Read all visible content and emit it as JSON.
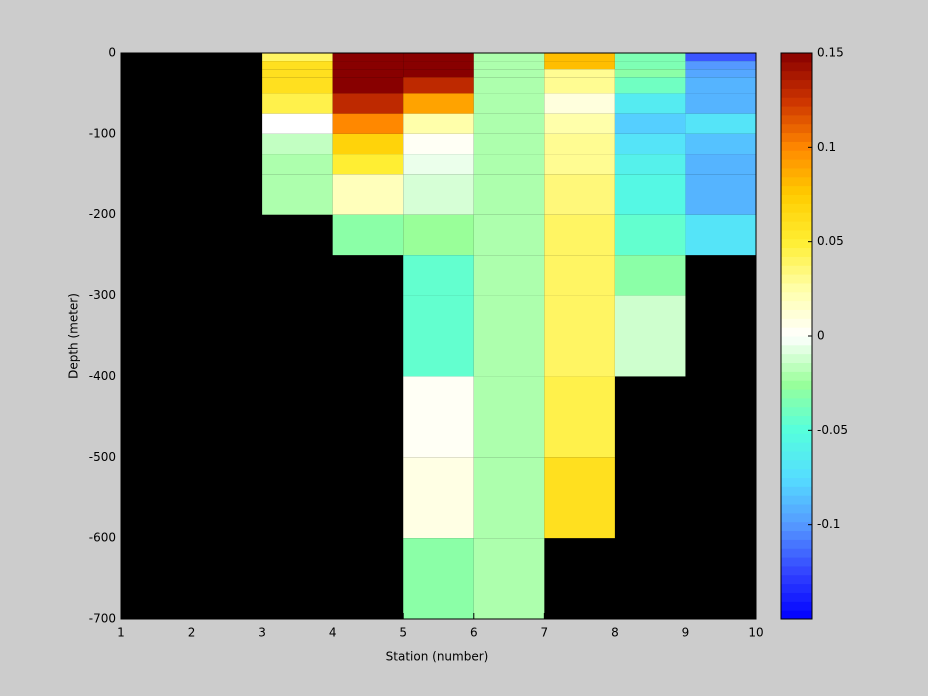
{
  "chart_data": {
    "type": "heatmap",
    "x_label": "Station (number)",
    "y_label": "Depth (meter)",
    "x": [
      1,
      2,
      3,
      4,
      5,
      6,
      7,
      8,
      9,
      10
    ],
    "y": [
      0,
      -10,
      -20,
      -30,
      -50,
      -75,
      -100,
      -125,
      -150,
      -200,
      -250,
      -300,
      -400,
      -500,
      -600,
      -700
    ],
    "z": [
      [
        null,
        null,
        0.04,
        0.15,
        0.15,
        -0.02,
        0.08,
        -0.035,
        -0.12
      ],
      [
        null,
        null,
        0.06,
        0.15,
        0.15,
        -0.02,
        0.08,
        -0.035,
        -0.1
      ],
      [
        null,
        null,
        0.06,
        0.15,
        0.15,
        -0.02,
        0.03,
        -0.03,
        -0.095
      ],
      [
        null,
        null,
        0.06,
        0.15,
        0.13,
        -0.02,
        0.03,
        -0.04,
        -0.09
      ],
      [
        null,
        null,
        0.045,
        0.13,
        0.09,
        -0.02,
        0.01,
        -0.065,
        -0.09
      ],
      [
        null,
        null,
        0,
        0.1,
        0.025,
        -0.02,
        0.025,
        -0.08,
        -0.07
      ],
      [
        null,
        null,
        -0.015,
        0.07,
        0.003,
        -0.02,
        0.03,
        -0.07,
        -0.085
      ],
      [
        null,
        null,
        -0.02,
        0.05,
        -0.005,
        -0.02,
        0.03,
        -0.06,
        -0.09
      ],
      [
        null,
        null,
        -0.02,
        0.02,
        -0.01,
        -0.02,
        0.035,
        -0.055,
        -0.09
      ],
      [
        null,
        null,
        null,
        -0.03,
        -0.025,
        -0.02,
        0.04,
        -0.045,
        -0.07
      ],
      [
        null,
        null,
        null,
        null,
        -0.045,
        -0.02,
        0.04,
        -0.03,
        null
      ],
      [
        null,
        null,
        null,
        null,
        -0.045,
        -0.02,
        0.04,
        -0.012,
        null
      ],
      [
        null,
        null,
        null,
        null,
        0.003,
        -0.02,
        0.045,
        null,
        null
      ],
      [
        null,
        null,
        null,
        null,
        0.008,
        -0.02,
        0.06,
        null,
        null
      ],
      [
        null,
        null,
        null,
        null,
        -0.03,
        -0.02,
        null,
        null,
        null
      ]
    ],
    "xlim": [
      1,
      10
    ],
    "xticks": [
      1,
      2,
      3,
      4,
      5,
      6,
      7,
      8,
      9,
      10
    ],
    "ylim": [
      -700,
      0
    ],
    "yticks": [
      0,
      -100,
      -200,
      -300,
      -400,
      -500,
      -600,
      -700
    ],
    "clim": [
      -0.15,
      0.15
    ],
    "cticks": [
      0.15,
      0.1,
      0.05,
      0,
      -0.05,
      -0.1
    ],
    "colormap": [
      "#0000ff",
      "#3344ff",
      "#5599ff",
      "#55ddff",
      "#55ffdd",
      "#99ff99",
      "#ffffff",
      "#ffffaa",
      "#ffee33",
      "#ffcc00",
      "#ff8800",
      "#cc3300",
      "#880000"
    ],
    "nan_color": "#000000"
  }
}
